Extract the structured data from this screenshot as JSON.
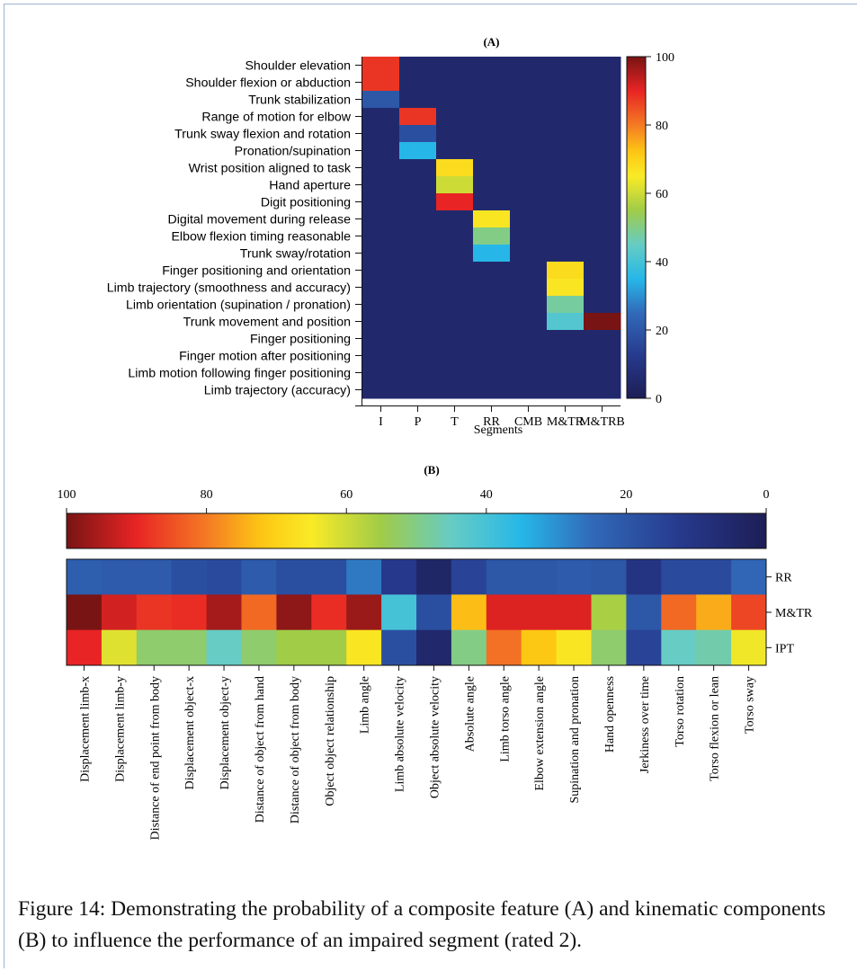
{
  "caption": "Figure 14: Demonstrating the probability of a composite feature (A) and kinematic components (B) to influence the performance of an impaired segment (rated 2).",
  "chart_data": [
    {
      "type": "heatmap",
      "title": "(A)",
      "xlabel": "Segments",
      "ylabel": "",
      "x_categories": [
        "I",
        "P",
        "T",
        "RR",
        "CMB",
        "M&TR",
        "M&TRB"
      ],
      "y_categories": [
        "Shoulder elevation",
        "Shoulder flexion or abduction",
        "Trunk stabilization",
        "Range of motion for elbow",
        "Trunk sway flexion and rotation",
        "Pronation/supination",
        "Wrist position aligned to task",
        "Hand aperture",
        "Digit positioning",
        "Digital movement during release",
        "Elbow flexion timing reasonable",
        "Trunk sway/rotation",
        "Finger positioning and orientation",
        "Limb trajectory (smoothness and accuracy)",
        "Limb orientation (supination / pronation)",
        "Trunk movement and position",
        "Finger positioning",
        "Finger motion after positioning",
        "Limb motion following finger positioning",
        "Limb trajectory (accuracy)"
      ],
      "cell_values": [
        [
          88,
          5,
          5,
          5,
          5,
          5,
          5
        ],
        [
          88,
          5,
          5,
          5,
          5,
          5,
          5
        ],
        [
          20,
          5,
          5,
          5,
          5,
          5,
          5
        ],
        [
          5,
          88,
          5,
          5,
          5,
          5,
          5
        ],
        [
          5,
          18,
          5,
          5,
          5,
          5,
          5
        ],
        [
          5,
          35,
          5,
          5,
          5,
          5,
          5
        ],
        [
          5,
          5,
          68,
          5,
          5,
          5,
          5
        ],
        [
          5,
          5,
          60,
          5,
          5,
          5,
          5
        ],
        [
          5,
          5,
          90,
          5,
          5,
          5,
          5
        ],
        [
          5,
          5,
          5,
          66,
          5,
          5,
          5
        ],
        [
          5,
          5,
          5,
          50,
          5,
          5,
          5
        ],
        [
          5,
          5,
          5,
          35,
          5,
          5,
          5
        ],
        [
          5,
          5,
          5,
          5,
          5,
          68,
          5
        ],
        [
          5,
          5,
          5,
          5,
          5,
          66,
          5
        ],
        [
          5,
          5,
          5,
          5,
          5,
          48,
          5
        ],
        [
          5,
          5,
          5,
          5,
          5,
          42,
          100
        ],
        [
          5,
          5,
          5,
          5,
          5,
          5,
          5
        ],
        [
          5,
          5,
          5,
          5,
          5,
          5,
          5
        ],
        [
          5,
          5,
          5,
          5,
          5,
          5,
          5
        ],
        [
          5,
          5,
          5,
          5,
          5,
          5,
          5
        ]
      ],
      "colorbar": {
        "min": 0,
        "max": 100,
        "ticks": [
          0,
          20,
          40,
          60,
          80,
          100
        ],
        "orientation": "vertical",
        "position": "right"
      }
    },
    {
      "type": "heatmap",
      "title": "(B)",
      "xlabel": "",
      "ylabel": "",
      "x_categories": [
        "Displacement limb-x",
        "Displacement limb-y",
        "Distance of end point from body",
        "Displacement object-x",
        "Displacement object-y",
        "Distance of object from hand",
        "Distance of object from body",
        "Object object relationship",
        "Limb angle",
        "Limb absolute velocity",
        "Object absolute velocity",
        "Absolute angle",
        "Limb torso angle",
        "Elbow extension angle",
        "Supination and pronation",
        "Hand openness",
        "Jerkiness over time",
        "Torso rotation",
        "Torso flexion or lean",
        "Torso sway"
      ],
      "y_categories": [
        "RR",
        "M&TR",
        "IPT"
      ],
      "cell_values": [
        [
          22,
          21,
          21,
          18,
          17,
          21,
          18,
          18,
          27,
          12,
          4,
          15,
          20,
          20,
          21,
          20,
          10,
          17,
          17,
          24
        ],
        [
          100,
          92,
          88,
          89,
          96,
          82,
          98,
          89,
          97,
          40,
          18,
          73,
          91,
          91,
          91,
          56,
          20,
          82,
          75,
          86
        ],
        [
          90,
          62,
          52,
          52,
          45,
          52,
          55,
          55,
          66,
          18,
          5,
          50,
          81,
          72,
          66,
          52,
          15,
          45,
          47,
          64
        ]
      ],
      "colorbar": {
        "min": 0,
        "max": 100,
        "ticks": [
          100,
          80,
          60,
          40,
          20,
          0
        ],
        "orientation": "horizontal",
        "position": "top",
        "direction": "reversed"
      }
    }
  ]
}
